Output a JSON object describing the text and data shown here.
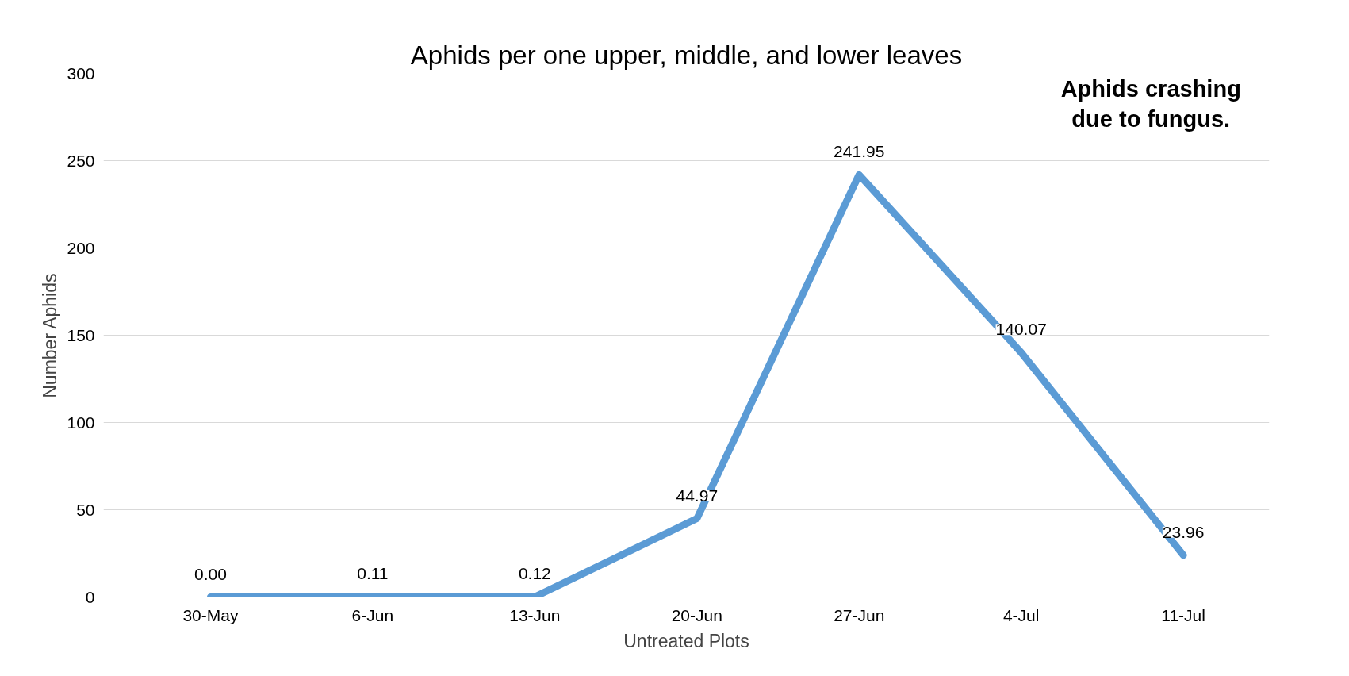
{
  "chart_data": {
    "type": "line",
    "title": "Aphids per one upper, middle, and lower leaves",
    "xlabel": "Untreated Plots",
    "ylabel": "Number Aphids",
    "categories": [
      "30-May",
      "6-Jun",
      "13-Jun",
      "20-Jun",
      "27-Jun",
      "4-Jul",
      "11-Jul"
    ],
    "series": [
      {
        "color": "#5b9bd5",
        "values": [
          0.0,
          0.11,
          0.12,
          44.97,
          241.95,
          140.07,
          23.96
        ]
      }
    ],
    "value_labels": [
      "0.00",
      "0.11",
      "0.12",
      "44.97",
      "241.95",
      "140.07",
      "23.96"
    ],
    "ylim": [
      0,
      300
    ],
    "yticks": [
      0,
      50,
      100,
      150,
      200,
      250,
      300
    ],
    "grid": "y",
    "marker": "none",
    "line_style": "solid",
    "annotations": [
      "Aphids crashing due to fungus."
    ]
  }
}
